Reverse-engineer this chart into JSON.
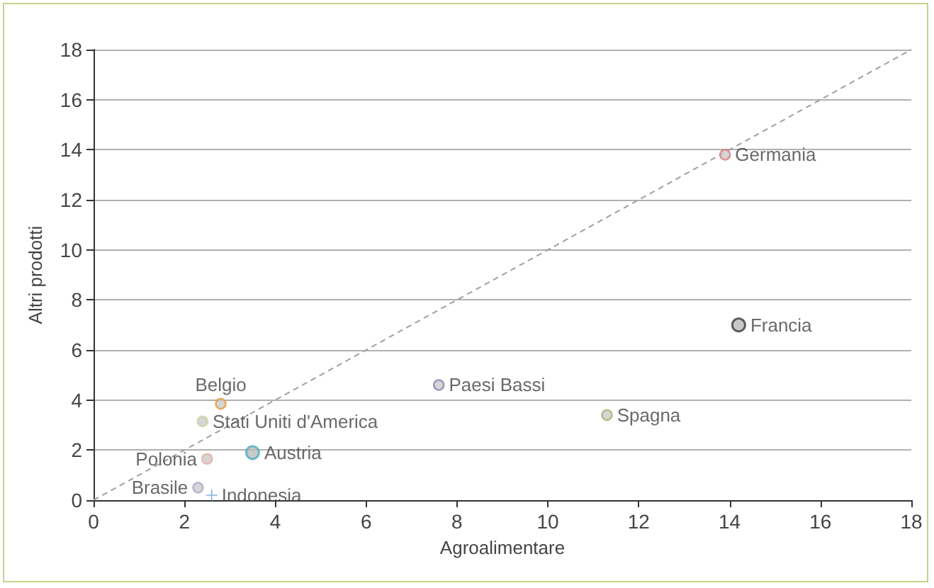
{
  "chart_data": {
    "type": "scatter",
    "xlabel": "Agroalimentare",
    "ylabel": "Altri prodotti",
    "xlim": [
      0,
      18
    ],
    "xticks": [
      0,
      2,
      4,
      6,
      8,
      10,
      12,
      14,
      16,
      18
    ],
    "ylim": [
      0,
      18
    ],
    "yticks": [
      0,
      2,
      4,
      6,
      8,
      10,
      12,
      14,
      16,
      18
    ],
    "grid": "y",
    "legend": false,
    "series": [
      {
        "name": "Germania",
        "color": "#d87a7a",
        "x": [
          13.9
        ],
        "values": [
          13.8
        ],
        "marker": "circle"
      },
      {
        "name": "Francia",
        "color": "#3a3a3a",
        "x": [
          14.2
        ],
        "values": [
          7.0
        ],
        "marker": "circle"
      },
      {
        "name": "Paesi Bassi",
        "color": "#8d7cb8",
        "x": [
          7.6
        ],
        "values": [
          4.6
        ],
        "marker": "circle"
      },
      {
        "name": "Spagna",
        "color": "#9db36a",
        "x": [
          11.3
        ],
        "values": [
          3.4
        ],
        "marker": "circle"
      },
      {
        "name": "Belgio",
        "color": "#e8963a",
        "x": [
          2.8
        ],
        "values": [
          3.85
        ],
        "marker": "circle"
      },
      {
        "name": "Stati Uniti d'America",
        "color": "#c4d49c",
        "x": [
          2.4
        ],
        "values": [
          3.15
        ],
        "marker": "circle"
      },
      {
        "name": "Polonia",
        "color": "#e8a8a0",
        "x": [
          2.5
        ],
        "values": [
          1.65
        ],
        "marker": "circle"
      },
      {
        "name": "Austria",
        "color": "#4aaec0",
        "x": [
          3.5
        ],
        "values": [
          1.9
        ],
        "marker": "circle"
      },
      {
        "name": "Brasile",
        "color": "#b0a8c8",
        "x": [
          2.3
        ],
        "values": [
          0.5
        ],
        "marker": "circle"
      },
      {
        "name": "Indonesia",
        "color": "#6a9ad8",
        "x": [
          2.6
        ],
        "values": [
          0.2
        ],
        "marker": "cross"
      },
      {
        "type": "line",
        "color": "#a0a0a0",
        "x": [
          0,
          18
        ],
        "values": [
          0,
          18
        ],
        "line_style": "dashed",
        "marker": "none"
      }
    ]
  }
}
